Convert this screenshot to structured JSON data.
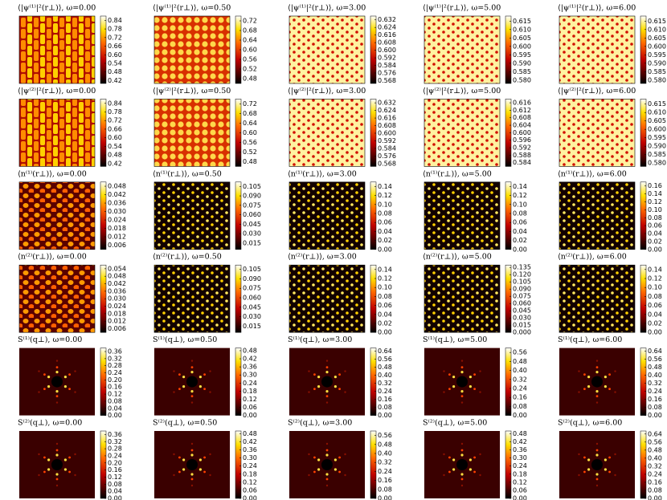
{
  "chart_data": [
    {
      "type": "heatmap",
      "title": "⟨|ψ⁽¹⁾|²(r⊥)⟩, ω=0.00",
      "clim": [
        0.4,
        0.87
      ],
      "cticks": [
        0.84,
        0.78,
        0.72,
        0.66,
        {
          "value": 0.6,
          "label": "0.60"
        },
        0.54,
        0.48,
        0.42
      ]
    },
    {
      "type": "heatmap",
      "title": "⟨|ψ⁽¹⁾|²(r⊥)⟩, ω=0.50",
      "clim": [
        0.46,
        0.74
      ],
      "cticks": [
        0.72,
        0.68,
        0.64,
        {
          "value": 0.6,
          "label": "0.60"
        },
        0.56,
        0.52,
        0.48
      ]
    },
    {
      "type": "heatmap",
      "title": "⟨|ψ⁽¹⁾|²(r⊥)⟩, ω=3.00",
      "clim": [
        0.565,
        0.636
      ],
      "cticks": [
        0.632,
        0.624,
        0.616,
        0.608,
        {
          "value": 0.6,
          "label": "0.600"
        },
        0.592,
        0.584,
        0.576,
        0.568
      ]
    },
    {
      "type": "heatmap",
      "title": "⟨|ψ⁽¹⁾|²(r⊥)⟩, ω=5.00",
      "clim": [
        0.578,
        0.618
      ],
      "cticks": [
        0.615,
        {
          "value": 0.61,
          "label": "0.610"
        },
        0.605,
        {
          "value": 0.6,
          "label": "0.600"
        },
        0.595,
        {
          "value": 0.59,
          "label": "0.590"
        },
        0.585,
        {
          "value": 0.58,
          "label": "0.580"
        }
      ]
    },
    {
      "type": "heatmap",
      "title": "⟨|ψ⁽¹⁾|²(r⊥)⟩, ω=6.00",
      "clim": [
        0.578,
        0.618
      ],
      "cticks": [
        0.615,
        {
          "value": 0.61,
          "label": "0.610"
        },
        0.605,
        {
          "value": 0.6,
          "label": "0.600"
        },
        0.595,
        {
          "value": 0.59,
          "label": "0.590"
        },
        0.585,
        {
          "value": 0.58,
          "label": "0.580"
        }
      ]
    },
    {
      "type": "heatmap",
      "title": "⟨|ψ⁽²⁾|²(r⊥)⟩, ω=0.00",
      "clim": [
        0.4,
        0.87
      ],
      "cticks": [
        0.84,
        0.78,
        0.72,
        0.66,
        {
          "value": 0.6,
          "label": "0.60"
        },
        0.54,
        0.48,
        0.42
      ]
    },
    {
      "type": "heatmap",
      "title": "⟨|ψ⁽²⁾|²(r⊥)⟩, ω=0.50",
      "clim": [
        0.46,
        0.74
      ],
      "cticks": [
        0.72,
        0.68,
        0.64,
        {
          "value": 0.6,
          "label": "0.60"
        },
        0.56,
        0.52,
        0.48
      ]
    },
    {
      "type": "heatmap",
      "title": "⟨|ψ⁽²⁾|²(r⊥)⟩, ω=3.00",
      "clim": [
        0.565,
        0.636
      ],
      "cticks": [
        0.632,
        0.624,
        0.616,
        0.608,
        {
          "value": 0.6,
          "label": "0.600"
        },
        0.592,
        0.584,
        0.576,
        0.568
      ]
    },
    {
      "type": "heatmap",
      "title": "⟨|ψ⁽²⁾|²(r⊥)⟩, ω=5.00",
      "clim": [
        0.582,
        0.618
      ],
      "cticks": [
        0.616,
        0.612,
        0.608,
        0.604,
        {
          "value": 0.6,
          "label": "0.600"
        },
        0.596,
        0.592,
        0.588,
        0.584
      ]
    },
    {
      "type": "heatmap",
      "title": "⟨|ψ⁽²⁾|²(r⊥)⟩, ω=6.00",
      "clim": [
        0.578,
        0.618
      ],
      "cticks": [
        0.615,
        {
          "value": 0.61,
          "label": "0.610"
        },
        0.605,
        {
          "value": 0.6,
          "label": "0.600"
        },
        0.595,
        {
          "value": 0.59,
          "label": "0.590"
        },
        0.585,
        {
          "value": 0.58,
          "label": "0.580"
        }
      ]
    },
    {
      "type": "heatmap",
      "title": "⟨n⁽¹⁾(r⊥)⟩, ω=0.00",
      "clim": [
        0.003,
        0.051
      ],
      "cticks": [
        0.048,
        0.042,
        0.036,
        {
          "value": 0.03,
          "label": "0.030"
        },
        0.024,
        0.018,
        0.012,
        0.006
      ]
    },
    {
      "type": "heatmap",
      "title": "⟨n⁽¹⁾(r⊥)⟩, ω=0.50",
      "clim": [
        0.005,
        0.112
      ],
      "cticks": [
        0.105,
        {
          "value": 0.09,
          "label": "0.090"
        },
        0.075,
        {
          "value": 0.06,
          "label": "0.060"
        },
        0.045,
        {
          "value": 0.03,
          "label": "0.030"
        },
        0.015
      ]
    },
    {
      "type": "heatmap",
      "title": "⟨n⁽¹⁾(r⊥)⟩, ω=3.00",
      "clim": [
        0,
        0.15
      ],
      "cticks": [
        0.14,
        0.12,
        {
          "value": 0.1,
          "label": "0.10"
        },
        0.08,
        0.06,
        0.04,
        0.02,
        {
          "value": 0,
          "label": "0.00"
        }
      ]
    },
    {
      "type": "heatmap",
      "title": "⟨n⁽¹⁾(r⊥)⟩, ω=5.00",
      "clim": [
        0,
        0.15
      ],
      "cticks": [
        0.14,
        0.12,
        {
          "value": 0.1,
          "label": "0.10"
        },
        0.08,
        0.06,
        0.04,
        0.02,
        {
          "value": 0,
          "label": "0.00"
        }
      ]
    },
    {
      "type": "heatmap",
      "title": "⟨n⁽¹⁾(r⊥)⟩, ω=6.00",
      "clim": [
        0,
        0.17
      ],
      "cticks": [
        0.16,
        0.14,
        0.12,
        {
          "value": 0.1,
          "label": "0.10"
        },
        0.08,
        0.06,
        0.04,
        0.02,
        {
          "value": 0,
          "label": "0.00"
        }
      ]
    },
    {
      "type": "heatmap",
      "title": "⟨n⁽²⁾(r⊥)⟩, ω=0.00",
      "clim": [
        0.003,
        0.057
      ],
      "cticks": [
        0.054,
        0.048,
        0.042,
        0.036,
        {
          "value": 0.03,
          "label": "0.030"
        },
        0.024,
        0.018,
        0.012,
        0.006
      ]
    },
    {
      "type": "heatmap",
      "title": "⟨n⁽²⁾(r⊥)⟩, ω=0.50",
      "clim": [
        0.005,
        0.112
      ],
      "cticks": [
        0.105,
        {
          "value": 0.09,
          "label": "0.090"
        },
        0.075,
        {
          "value": 0.06,
          "label": "0.060"
        },
        0.045,
        {
          "value": 0.03,
          "label": "0.030"
        },
        0.015
      ]
    },
    {
      "type": "heatmap",
      "title": "⟨n⁽²⁾(r⊥)⟩, ω=3.00",
      "clim": [
        0,
        0.15
      ],
      "cticks": [
        0.14,
        0.12,
        {
          "value": 0.1,
          "label": "0.10"
        },
        0.08,
        0.06,
        0.04,
        0.02,
        {
          "value": 0,
          "label": "0.00"
        }
      ]
    },
    {
      "type": "heatmap",
      "title": "⟨n⁽²⁾(r⊥)⟩, ω=5.00",
      "clim": [
        0,
        0.14
      ],
      "cticks": [
        0.135,
        {
          "value": 0.12,
          "label": "0.120"
        },
        0.105,
        {
          "value": 0.09,
          "label": "0.090"
        },
        0.075,
        {
          "value": 0.06,
          "label": "0.060"
        },
        0.045,
        {
          "value": 0.03,
          "label": "0.030"
        },
        0.015,
        {
          "value": 0,
          "label": "0.000"
        }
      ]
    },
    {
      "type": "heatmap",
      "title": "⟨n⁽²⁾(r⊥)⟩, ω=6.00",
      "clim": [
        0,
        0.15
      ],
      "cticks": [
        0.14,
        0.12,
        {
          "value": 0.1,
          "label": "0.10"
        },
        0.08,
        0.06,
        0.04,
        0.02,
        {
          "value": 0,
          "label": "0.00"
        }
      ]
    },
    {
      "type": "heatmap",
      "title": "S⁽¹⁾(q⊥), ω=0.00",
      "clim": [
        0,
        0.38
      ],
      "cticks": [
        0.36,
        0.32,
        0.28,
        0.24,
        {
          "value": 0.2,
          "label": "0.20"
        },
        0.16,
        0.12,
        0.08,
        0.04,
        {
          "value": 0,
          "label": "0.00"
        }
      ]
    },
    {
      "type": "heatmap",
      "title": "S⁽¹⁾(q⊥), ω=0.50",
      "clim": [
        0,
        0.5
      ],
      "cticks": [
        0.48,
        0.42,
        0.36,
        {
          "value": 0.3,
          "label": "0.30"
        },
        0.24,
        0.18,
        0.12,
        0.06,
        {
          "value": 0,
          "label": "0.00"
        }
      ]
    },
    {
      "type": "heatmap",
      "title": "S⁽¹⁾(q⊥), ω=3.00",
      "clim": [
        0,
        0.67
      ],
      "cticks": [
        0.64,
        0.56,
        0.48,
        {
          "value": 0.4,
          "label": "0.40"
        },
        0.32,
        0.24,
        0.16,
        0.08,
        {
          "value": 0,
          "label": "0.00"
        }
      ]
    },
    {
      "type": "heatmap",
      "title": "S⁽¹⁾(q⊥), ω=5.00",
      "clim": [
        0,
        0.6
      ],
      "cticks": [
        0.56,
        0.48,
        {
          "value": 0.4,
          "label": "0.40"
        },
        0.32,
        0.24,
        0.16,
        0.08,
        {
          "value": 0,
          "label": "0.00"
        }
      ]
    },
    {
      "type": "heatmap",
      "title": "S⁽¹⁾(q⊥), ω=6.00",
      "clim": [
        0,
        0.67
      ],
      "cticks": [
        0.64,
        0.56,
        0.48,
        {
          "value": 0.4,
          "label": "0.40"
        },
        0.32,
        0.24,
        0.16,
        0.08,
        {
          "value": 0,
          "label": "0.00"
        }
      ]
    },
    {
      "type": "heatmap",
      "title": "S⁽²⁾(q⊥), ω=0.00",
      "clim": [
        0,
        0.38
      ],
      "cticks": [
        0.36,
        0.32,
        0.28,
        0.24,
        {
          "value": 0.2,
          "label": "0.20"
        },
        0.16,
        0.12,
        0.08,
        0.04,
        {
          "value": 0,
          "label": "0.00"
        }
      ]
    },
    {
      "type": "heatmap",
      "title": "S⁽²⁾(q⊥), ω=0.50",
      "clim": [
        0,
        0.5
      ],
      "cticks": [
        0.48,
        0.42,
        0.36,
        {
          "value": 0.3,
          "label": "0.30"
        },
        0.24,
        0.18,
        0.12,
        0.06,
        {
          "value": 0,
          "label": "0.00"
        }
      ]
    },
    {
      "type": "heatmap",
      "title": "S⁽²⁾(q⊥), ω=3.00",
      "clim": [
        0,
        0.6
      ],
      "cticks": [
        0.56,
        0.48,
        {
          "value": 0.4,
          "label": "0.40"
        },
        0.32,
        0.24,
        0.16,
        0.08,
        {
          "value": 0,
          "label": "0.00"
        }
      ]
    },
    {
      "type": "heatmap",
      "title": "S⁽²⁾(q⊥), ω=5.00",
      "clim": [
        0,
        0.5
      ],
      "cticks": [
        0.48,
        0.42,
        0.36,
        {
          "value": 0.3,
          "label": "0.30"
        },
        0.24,
        0.18,
        0.12,
        0.06,
        {
          "value": 0,
          "label": "0.00"
        }
      ]
    },
    {
      "type": "heatmap",
      "title": "S⁽²⁾(q⊥), ω=6.00",
      "clim": [
        0,
        0.67
      ],
      "cticks": [
        0.64,
        0.56,
        0.48,
        {
          "value": 0.4,
          "label": "0.40"
        },
        0.32,
        0.24,
        0.16,
        0.08,
        {
          "value": 0,
          "label": "0.00"
        }
      ]
    }
  ]
}
